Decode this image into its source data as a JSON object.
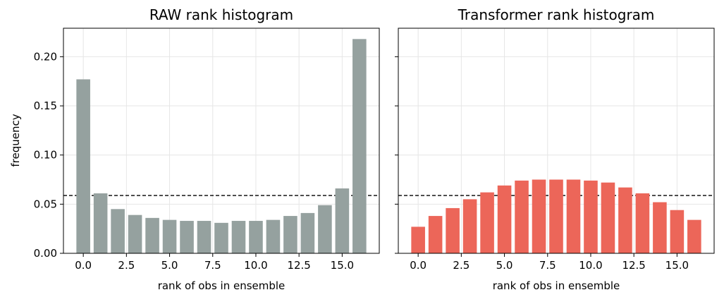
{
  "chart_data": [
    {
      "type": "bar",
      "title": "RAW rank histogram",
      "xlabel": "rank of obs in ensemble",
      "ylabel": "frequency",
      "x": [
        0,
        1,
        2,
        3,
        4,
        5,
        6,
        7,
        8,
        9,
        10,
        11,
        12,
        13,
        14,
        15,
        16
      ],
      "values": [
        0.177,
        0.061,
        0.045,
        0.039,
        0.036,
        0.034,
        0.033,
        0.033,
        0.031,
        0.033,
        0.033,
        0.034,
        0.038,
        0.041,
        0.049,
        0.066,
        0.218
      ],
      "reference_line": 0.0588,
      "xlim": [
        -1.15,
        17.15
      ],
      "ylim": [
        0,
        0.229
      ],
      "xticks": [
        "0.0",
        "2.5",
        "5.0",
        "7.5",
        "10.0",
        "12.5",
        "15.0"
      ],
      "xtick_values": [
        0,
        2.5,
        5,
        7.5,
        10,
        12.5,
        15
      ],
      "yticks": [
        "0.00",
        "0.05",
        "0.10",
        "0.15",
        "0.20"
      ],
      "ytick_values": [
        0,
        0.05,
        0.1,
        0.15,
        0.2
      ],
      "bar_color": "#95a19f",
      "grid": true
    },
    {
      "type": "bar",
      "title": "Transformer rank histogram",
      "xlabel": "rank of obs in ensemble",
      "ylabel": "",
      "x": [
        0,
        1,
        2,
        3,
        4,
        5,
        6,
        7,
        8,
        9,
        10,
        11,
        12,
        13,
        14,
        15,
        16
      ],
      "values": [
        0.027,
        0.038,
        0.046,
        0.055,
        0.062,
        0.069,
        0.074,
        0.075,
        0.075,
        0.075,
        0.074,
        0.072,
        0.067,
        0.061,
        0.052,
        0.044,
        0.034
      ],
      "reference_line": 0.0588,
      "xlim": [
        -1.15,
        17.15
      ],
      "ylim": [
        0,
        0.229
      ],
      "xticks": [
        "0.0",
        "2.5",
        "5.0",
        "7.5",
        "10.0",
        "12.5",
        "15.0"
      ],
      "xtick_values": [
        0,
        2.5,
        5,
        7.5,
        10,
        12.5,
        15
      ],
      "yticks": [
        "",
        "",
        "",
        "",
        ""
      ],
      "ytick_values": [
        0,
        0.05,
        0.1,
        0.15,
        0.2
      ],
      "bar_color": "#ec6659",
      "grid": true
    }
  ]
}
